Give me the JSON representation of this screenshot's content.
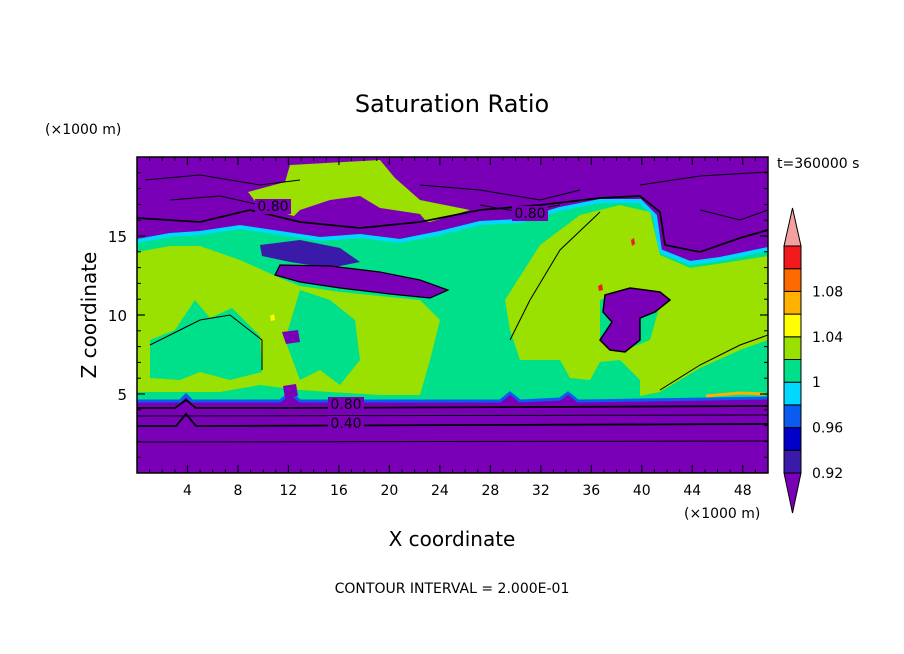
{
  "chart_data": {
    "type": "heatmap",
    "title": "Saturation Ratio",
    "time_label": "t=360000 s",
    "xlabel": "X coordinate",
    "ylabel": "Z coordinate",
    "x_unit": "(×1000 m)",
    "y_unit": "(×1000 m)",
    "footer": "CONTOUR INTERVAL = 2.000E-01",
    "xlim": [
      0,
      50
    ],
    "ylim": [
      0,
      20
    ],
    "x_ticks": [
      4,
      8,
      12,
      16,
      20,
      24,
      28,
      32,
      36,
      40,
      44,
      48
    ],
    "y_ticks": [
      5,
      10,
      15
    ],
    "contour_labels": [
      {
        "text": "0.80",
        "x": 11,
        "z": 16.7
      },
      {
        "text": "0.80",
        "x": 31,
        "z": 16.2
      },
      {
        "text": "0.80",
        "x": 17,
        "z": 4.3
      },
      {
        "text": "0.40",
        "x": 17,
        "z": 3.1
      }
    ],
    "colorbar": {
      "levels": [
        0.92,
        0.94,
        0.96,
        0.98,
        1,
        1.02,
        1.04,
        1.06,
        1.08,
        1.1
      ],
      "tick_labels": [
        "0.92",
        "0.96",
        "1",
        "1.04",
        "1.08"
      ],
      "colors": [
        "#7a00b8",
        "#3a1aa8",
        "#0000c8",
        "#0a5cf0",
        "#00d8ff",
        "#00e08a",
        "#9ae000",
        "#ffff00",
        "#ffb000",
        "#ff6a00",
        "#f21a1a",
        "#f4a0a0"
      ]
    }
  }
}
